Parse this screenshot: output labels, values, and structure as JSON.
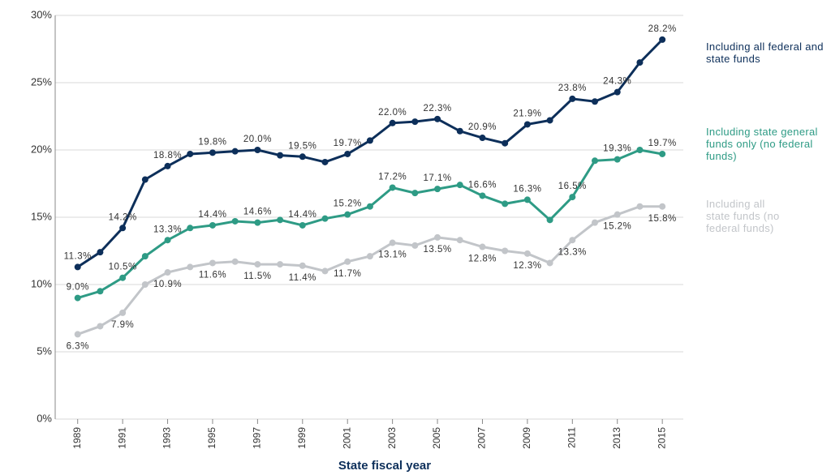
{
  "chart_data": {
    "type": "line",
    "xlabel": "State fiscal year",
    "x": [
      1989,
      1990,
      1991,
      1992,
      1993,
      1994,
      1995,
      1996,
      1997,
      1998,
      1999,
      2000,
      2001,
      2002,
      2003,
      2004,
      2005,
      2006,
      2007,
      2008,
      2009,
      2010,
      2011,
      2012,
      2013,
      2014,
      2015
    ],
    "xlim": [
      1988,
      2015.5
    ],
    "xticks": [
      1989,
      1991,
      1993,
      1995,
      1997,
      1999,
      2001,
      2003,
      2005,
      2007,
      2009,
      2011,
      2013,
      2015
    ],
    "ylim": [
      0,
      30
    ],
    "yticks": [
      {
        "value": 0,
        "label": "0%"
      },
      {
        "value": 5,
        "label": "5%"
      },
      {
        "value": 10,
        "label": "10%"
      },
      {
        "value": 15,
        "label": "15%"
      },
      {
        "value": 20,
        "label": "20%"
      },
      {
        "value": 25,
        "label": "25%"
      },
      {
        "value": 30,
        "label": "30%"
      }
    ],
    "grid": true,
    "series": [
      {
        "name": "Including all federal and state funds",
        "color": "#0d2f5a",
        "values": [
          11.3,
          12.4,
          14.2,
          17.8,
          18.8,
          19.7,
          19.8,
          19.9,
          20.0,
          19.6,
          19.5,
          19.1,
          19.7,
          20.7,
          22.0,
          22.1,
          22.3,
          21.4,
          20.9,
          20.5,
          21.9,
          22.2,
          23.8,
          23.6,
          24.3,
          26.5,
          28.2
        ],
        "value_labels": [
          "11.3%",
          null,
          "14.2%",
          null,
          "18.8%",
          null,
          "19.8%",
          null,
          "20.0%",
          null,
          "19.5%",
          null,
          "19.7%",
          null,
          "22.0%",
          null,
          "22.3%",
          null,
          "20.9%",
          null,
          "21.9%",
          null,
          "23.8%",
          null,
          "24.3%",
          null,
          "28.2%"
        ]
      },
      {
        "name": "Including state general funds only (no federal funds)",
        "color": "#2e9b85",
        "values": [
          9.0,
          9.5,
          10.5,
          12.1,
          13.3,
          14.2,
          14.4,
          14.7,
          14.6,
          14.8,
          14.4,
          14.9,
          15.2,
          15.8,
          17.2,
          16.8,
          17.1,
          17.4,
          16.6,
          16.0,
          16.3,
          14.8,
          16.5,
          19.2,
          19.3,
          20.0,
          19.7
        ],
        "value_labels": [
          "9.0%",
          null,
          "10.5%",
          null,
          "13.3%",
          null,
          "14.4%",
          null,
          "14.6%",
          null,
          "14.4%",
          null,
          "15.2%",
          null,
          "17.2%",
          null,
          "17.1%",
          null,
          "16.6%",
          null,
          "16.3%",
          null,
          "16.5%",
          null,
          "19.3%",
          null,
          "19.7%"
        ]
      },
      {
        "name": "Including all state funds (no federal funds)",
        "color": "#c2c5c9",
        "values": [
          6.3,
          6.9,
          7.9,
          10.0,
          10.9,
          11.3,
          11.6,
          11.7,
          11.5,
          11.5,
          11.4,
          11.0,
          11.7,
          12.1,
          13.1,
          12.9,
          13.5,
          13.3,
          12.8,
          12.5,
          12.3,
          11.6,
          13.3,
          14.6,
          15.2,
          15.8,
          15.8
        ],
        "value_labels": [
          "6.3%",
          null,
          "7.9%",
          null,
          "10.9%",
          null,
          "11.6%",
          null,
          "11.5%",
          null,
          "11.4%",
          null,
          "11.7%",
          null,
          "13.1%",
          null,
          "13.5%",
          null,
          "12.8%",
          null,
          "12.3%",
          null,
          "13.3%",
          null,
          "15.2%",
          null,
          "15.8%"
        ]
      }
    ]
  }
}
